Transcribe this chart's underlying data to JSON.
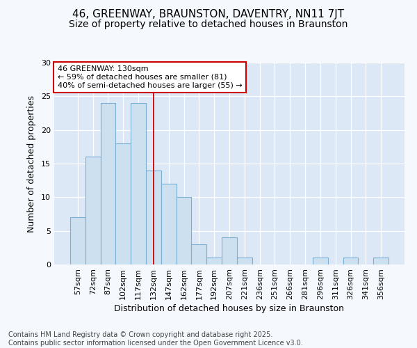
{
  "title1": "46, GREENWAY, BRAUNSTON, DAVENTRY, NN11 7JT",
  "title2": "Size of property relative to detached houses in Braunston",
  "xlabel": "Distribution of detached houses by size in Braunston",
  "ylabel": "Number of detached properties",
  "categories": [
    "57sqm",
    "72sqm",
    "87sqm",
    "102sqm",
    "117sqm",
    "132sqm",
    "147sqm",
    "162sqm",
    "177sqm",
    "192sqm",
    "207sqm",
    "221sqm",
    "236sqm",
    "251sqm",
    "266sqm",
    "281sqm",
    "296sqm",
    "311sqm",
    "326sqm",
    "341sqm",
    "356sqm"
  ],
  "values": [
    7,
    16,
    24,
    18,
    24,
    14,
    12,
    10,
    3,
    1,
    4,
    1,
    0,
    0,
    0,
    0,
    1,
    0,
    1,
    0,
    1
  ],
  "bar_color": "#cce0f0",
  "bar_edge_color": "#7ab0d4",
  "vline_x_index": 5,
  "vline_color": "#cc0000",
  "annotation_text": "46 GREENWAY: 130sqm\n← 59% of detached houses are smaller (81)\n40% of semi-detached houses are larger (55) →",
  "annotation_box_color": "#ffffff",
  "annotation_box_edge_color": "#cc0000",
  "ylim": [
    0,
    30
  ],
  "yticks": [
    0,
    5,
    10,
    15,
    20,
    25,
    30
  ],
  "plot_bg_color": "#dce8f5",
  "fig_bg_color": "#f5f8fc",
  "grid_color": "#ffffff",
  "footer_text": "Contains HM Land Registry data © Crown copyright and database right 2025.\nContains public sector information licensed under the Open Government Licence v3.0.",
  "title1_fontsize": 11,
  "title2_fontsize": 10,
  "xlabel_fontsize": 9,
  "ylabel_fontsize": 9,
  "tick_fontsize": 8,
  "annotation_fontsize": 8,
  "footer_fontsize": 7
}
